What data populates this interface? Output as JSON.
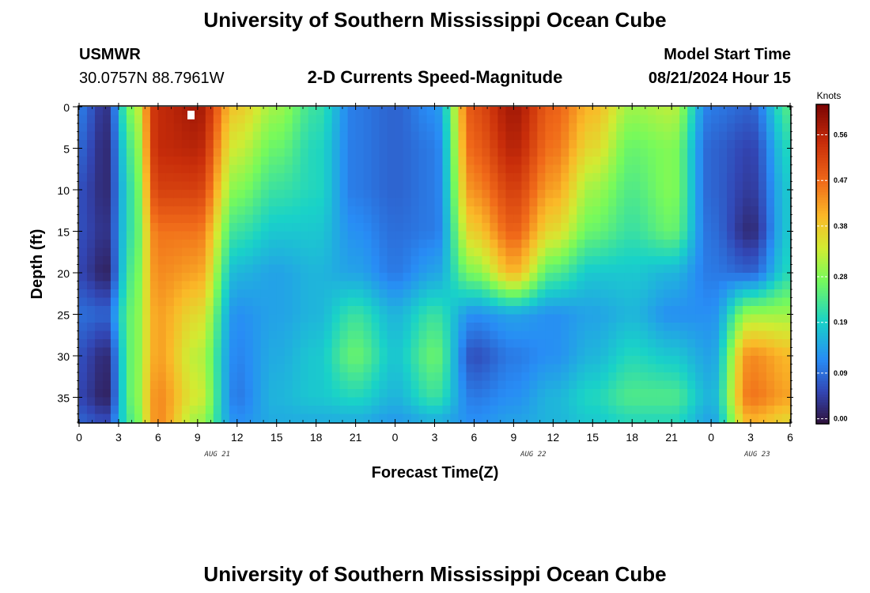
{
  "header": {
    "title": "University of Southern Mississippi Ocean Cube",
    "station_id": "USMWR",
    "coordinates": "30.0757N  88.7961W",
    "subtitle": "2-D Currents Speed-Magnitude",
    "model_start_label": "Model Start Time",
    "model_start_value": "08/21/2024 Hour 15",
    "repeated_title": "University of Southern Mississippi Ocean Cube"
  },
  "chart_data": {
    "type": "heatmap",
    "xlabel": "Forecast Time(Z)",
    "ylabel": "Depth (ft)",
    "x_ticks": [
      "0",
      "3",
      "6",
      "9",
      "12",
      "15",
      "18",
      "21",
      "0",
      "3",
      "6",
      "9",
      "12",
      "15",
      "18",
      "21",
      "0",
      "3",
      "6"
    ],
    "x_tick_hours": [
      0,
      3,
      6,
      9,
      12,
      15,
      18,
      21,
      24,
      27,
      30,
      33,
      36,
      39,
      42,
      45,
      48,
      51,
      54
    ],
    "x_range_hours": [
      0,
      54
    ],
    "date_labels": [
      {
        "text": "AUG 21",
        "hour": 10.5
      },
      {
        "text": "AUG 22",
        "hour": 34.5
      },
      {
        "text": "AUG 23",
        "hour": 51.5
      }
    ],
    "y_ticks": [
      0,
      5,
      10,
      15,
      20,
      25,
      30,
      35
    ],
    "y_range_ft": [
      0,
      38
    ],
    "colorbar": {
      "unit": "Knots",
      "labels": [
        "0.56",
        "0.47",
        "0.38",
        "0.28",
        "0.19",
        "0.09",
        "0.00"
      ],
      "label_values": [
        0.56,
        0.47,
        0.38,
        0.28,
        0.19,
        0.09,
        0.0
      ],
      "range": [
        -0.01,
        0.62
      ]
    },
    "grid": false,
    "speed_knots_by_hour": [
      {
        "hour": 0,
        "depth_ft": [
          0,
          5,
          10,
          15,
          20,
          25,
          30,
          35,
          38
        ],
        "speed": [
          0.1,
          0.08,
          0.06,
          0.06,
          0.05,
          0.09,
          0.06,
          0.05,
          0.08
        ]
      },
      {
        "hour": 2,
        "depth_ft": [
          0,
          5,
          10,
          15,
          20,
          25,
          30,
          35,
          38
        ],
        "speed": [
          0.03,
          0.02,
          0.02,
          0.03,
          0.01,
          0.08,
          0.02,
          0.01,
          0.06
        ]
      },
      {
        "hour": 4,
        "depth_ft": [
          0,
          5,
          10,
          15,
          20,
          25,
          30,
          35,
          38
        ],
        "speed": [
          0.28,
          0.24,
          0.22,
          0.22,
          0.24,
          0.26,
          0.26,
          0.26,
          0.24
        ]
      },
      {
        "hour": 6,
        "depth_ft": [
          0,
          5,
          10,
          15,
          20,
          25,
          30,
          35,
          38
        ],
        "speed": [
          0.55,
          0.55,
          0.52,
          0.46,
          0.44,
          0.42,
          0.42,
          0.44,
          0.44
        ]
      },
      {
        "hour": 9,
        "depth_ft": [
          0,
          5,
          10,
          15,
          20,
          25,
          30,
          35,
          38
        ],
        "speed": [
          0.58,
          0.56,
          0.52,
          0.46,
          0.42,
          0.36,
          0.32,
          0.34,
          0.3
        ]
      },
      {
        "hour": 12,
        "depth_ft": [
          0,
          5,
          10,
          15,
          20,
          25,
          30,
          35,
          38
        ],
        "speed": [
          0.38,
          0.33,
          0.28,
          0.22,
          0.16,
          0.12,
          0.11,
          0.1,
          0.12
        ]
      },
      {
        "hour": 15,
        "depth_ft": [
          0,
          5,
          10,
          15,
          20,
          25,
          30,
          35,
          38
        ],
        "speed": [
          0.3,
          0.26,
          0.22,
          0.18,
          0.14,
          0.14,
          0.15,
          0.16,
          0.15
        ]
      },
      {
        "hour": 18,
        "depth_ft": [
          0,
          5,
          10,
          15,
          20,
          25,
          30,
          35,
          38
        ],
        "speed": [
          0.22,
          0.2,
          0.2,
          0.18,
          0.16,
          0.16,
          0.18,
          0.18,
          0.15
        ]
      },
      {
        "hour": 21,
        "depth_ft": [
          0,
          5,
          10,
          15,
          20,
          25,
          30,
          35,
          38
        ],
        "speed": [
          0.1,
          0.1,
          0.1,
          0.12,
          0.14,
          0.22,
          0.26,
          0.2,
          0.15
        ]
      },
      {
        "hour": 24,
        "depth_ft": [
          0,
          5,
          10,
          15,
          20,
          25,
          30,
          35,
          38
        ],
        "speed": [
          0.08,
          0.08,
          0.08,
          0.09,
          0.1,
          0.16,
          0.18,
          0.16,
          0.13
        ]
      },
      {
        "hour": 27,
        "depth_ft": [
          0,
          5,
          10,
          15,
          20,
          25,
          30,
          35,
          38
        ],
        "speed": [
          0.12,
          0.1,
          0.1,
          0.1,
          0.14,
          0.22,
          0.26,
          0.22,
          0.15
        ]
      },
      {
        "hour": 30,
        "depth_ft": [
          0,
          5,
          10,
          15,
          20,
          25,
          30,
          35,
          38
        ],
        "speed": [
          0.5,
          0.48,
          0.44,
          0.38,
          0.28,
          0.12,
          0.06,
          0.1,
          0.12
        ]
      },
      {
        "hour": 33,
        "depth_ft": [
          0,
          5,
          10,
          15,
          20,
          25,
          30,
          35,
          38
        ],
        "speed": [
          0.58,
          0.56,
          0.52,
          0.48,
          0.4,
          0.14,
          0.1,
          0.12,
          0.14
        ]
      },
      {
        "hour": 36,
        "depth_ft": [
          0,
          5,
          10,
          15,
          20,
          25,
          30,
          35,
          38
        ],
        "speed": [
          0.48,
          0.46,
          0.42,
          0.36,
          0.24,
          0.12,
          0.12,
          0.16,
          0.16
        ]
      },
      {
        "hour": 39,
        "depth_ft": [
          0,
          5,
          10,
          15,
          20,
          25,
          30,
          35,
          38
        ],
        "speed": [
          0.4,
          0.36,
          0.3,
          0.26,
          0.18,
          0.14,
          0.16,
          0.2,
          0.18
        ]
      },
      {
        "hour": 42,
        "depth_ft": [
          0,
          5,
          10,
          15,
          20,
          25,
          30,
          35,
          38
        ],
        "speed": [
          0.3,
          0.26,
          0.24,
          0.22,
          0.18,
          0.16,
          0.2,
          0.24,
          0.2
        ]
      },
      {
        "hour": 45,
        "depth_ft": [
          0,
          5,
          10,
          15,
          20,
          25,
          30,
          35,
          38
        ],
        "speed": [
          0.32,
          0.28,
          0.28,
          0.26,
          0.16,
          0.12,
          0.18,
          0.24,
          0.2
        ]
      },
      {
        "hour": 48,
        "depth_ft": [
          0,
          5,
          10,
          15,
          20,
          25,
          30,
          35,
          38
        ],
        "speed": [
          0.1,
          0.08,
          0.08,
          0.09,
          0.1,
          0.12,
          0.14,
          0.16,
          0.14
        ]
      },
      {
        "hour": 51,
        "depth_ft": [
          0,
          5,
          10,
          15,
          20,
          25,
          30,
          35,
          38
        ],
        "speed": [
          0.08,
          0.05,
          0.04,
          0.02,
          0.08,
          0.3,
          0.44,
          0.46,
          0.4
        ]
      },
      {
        "hour": 54,
        "depth_ft": [
          0,
          5,
          10,
          15,
          20,
          25,
          30,
          35,
          38
        ],
        "speed": [
          0.24,
          0.2,
          0.18,
          0.18,
          0.2,
          0.3,
          0.4,
          0.42,
          0.36
        ]
      }
    ]
  }
}
